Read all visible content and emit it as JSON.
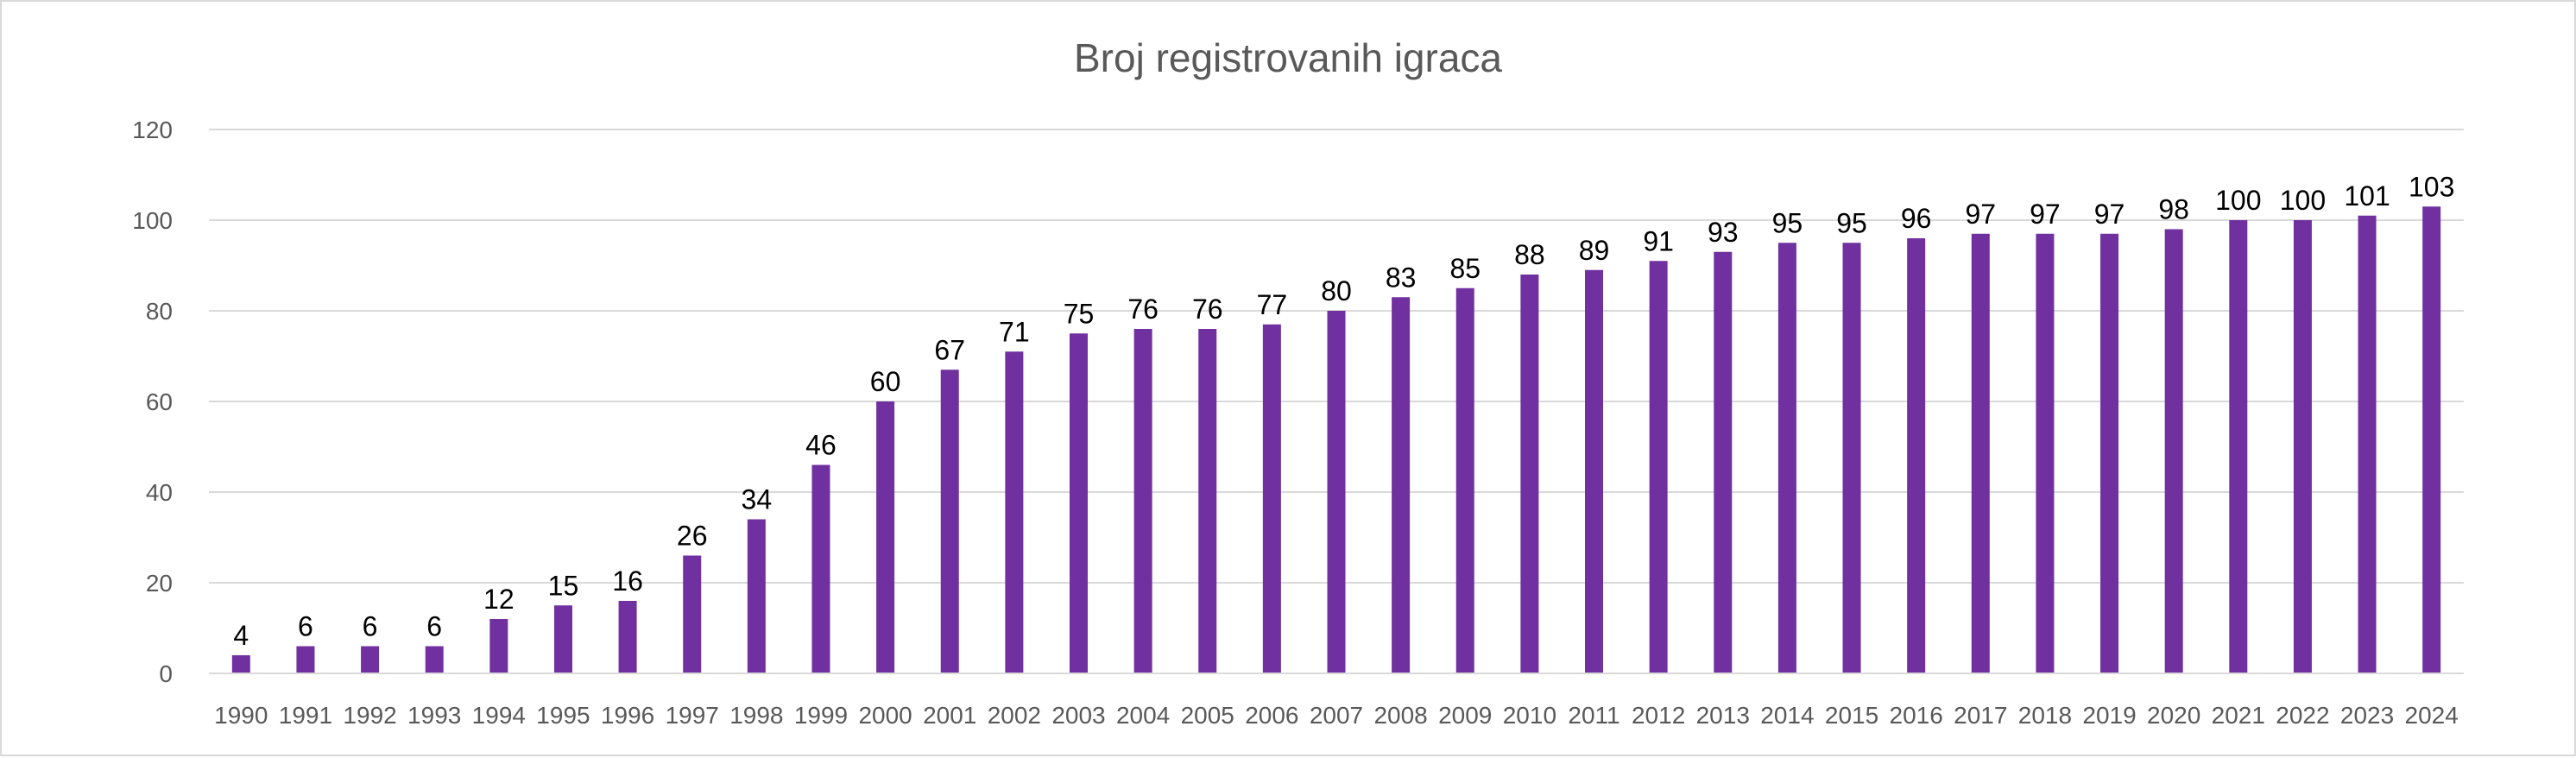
{
  "chart_data": {
    "type": "bar",
    "title": "Broj registrovanih igraca",
    "xlabel": "",
    "ylabel": "",
    "ylim": [
      0,
      120
    ],
    "yticks": [
      0,
      20,
      40,
      60,
      80,
      100,
      120
    ],
    "grid": true,
    "legend": "none",
    "bar_color": "#7030a0",
    "categories": [
      "1990",
      "1991",
      "1992",
      "1993",
      "1994",
      "1995",
      "1996",
      "1997",
      "1998",
      "1999",
      "2000",
      "2001",
      "2002",
      "2003",
      "2004",
      "2005",
      "2006",
      "2007",
      "2008",
      "2009",
      "2010",
      "2011",
      "2012",
      "2013",
      "2014",
      "2015",
      "2016",
      "2017",
      "2018",
      "2019",
      "2020",
      "2021",
      "2022",
      "2023",
      "2024"
    ],
    "values": [
      4,
      6,
      6,
      6,
      12,
      15,
      16,
      26,
      34,
      46,
      60,
      67,
      71,
      75,
      76,
      76,
      77,
      80,
      83,
      85,
      88,
      89,
      91,
      93,
      95,
      95,
      96,
      97,
      97,
      97,
      98,
      100,
      100,
      101,
      103
    ]
  }
}
